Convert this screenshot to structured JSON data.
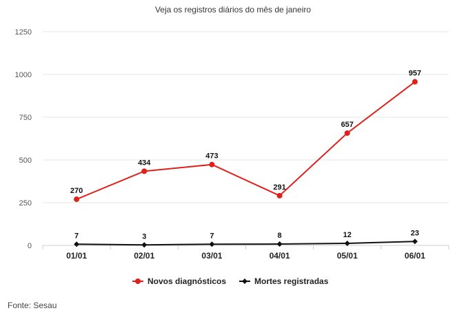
{
  "chart_data": {
    "type": "line",
    "title": "Veja os registros diários do mês de janeiro",
    "categories": [
      "01/01",
      "02/01",
      "03/01",
      "04/01",
      "05/01",
      "06/01"
    ],
    "ylim": [
      0,
      1250
    ],
    "yticks": [
      0,
      250,
      500,
      750,
      1000,
      1250
    ],
    "grid": true,
    "legend_position": "bottom",
    "series": [
      {
        "name": "Novos diagnósticos",
        "color": "#e0201b",
        "marker": "circle",
        "values": [
          270,
          434,
          473,
          291,
          657,
          957
        ]
      },
      {
        "name": "Mortes registradas",
        "color": "#111111",
        "marker": "diamond",
        "values": [
          7,
          3,
          7,
          8,
          12,
          23
        ]
      }
    ]
  },
  "source": "Fonte: Sesau"
}
